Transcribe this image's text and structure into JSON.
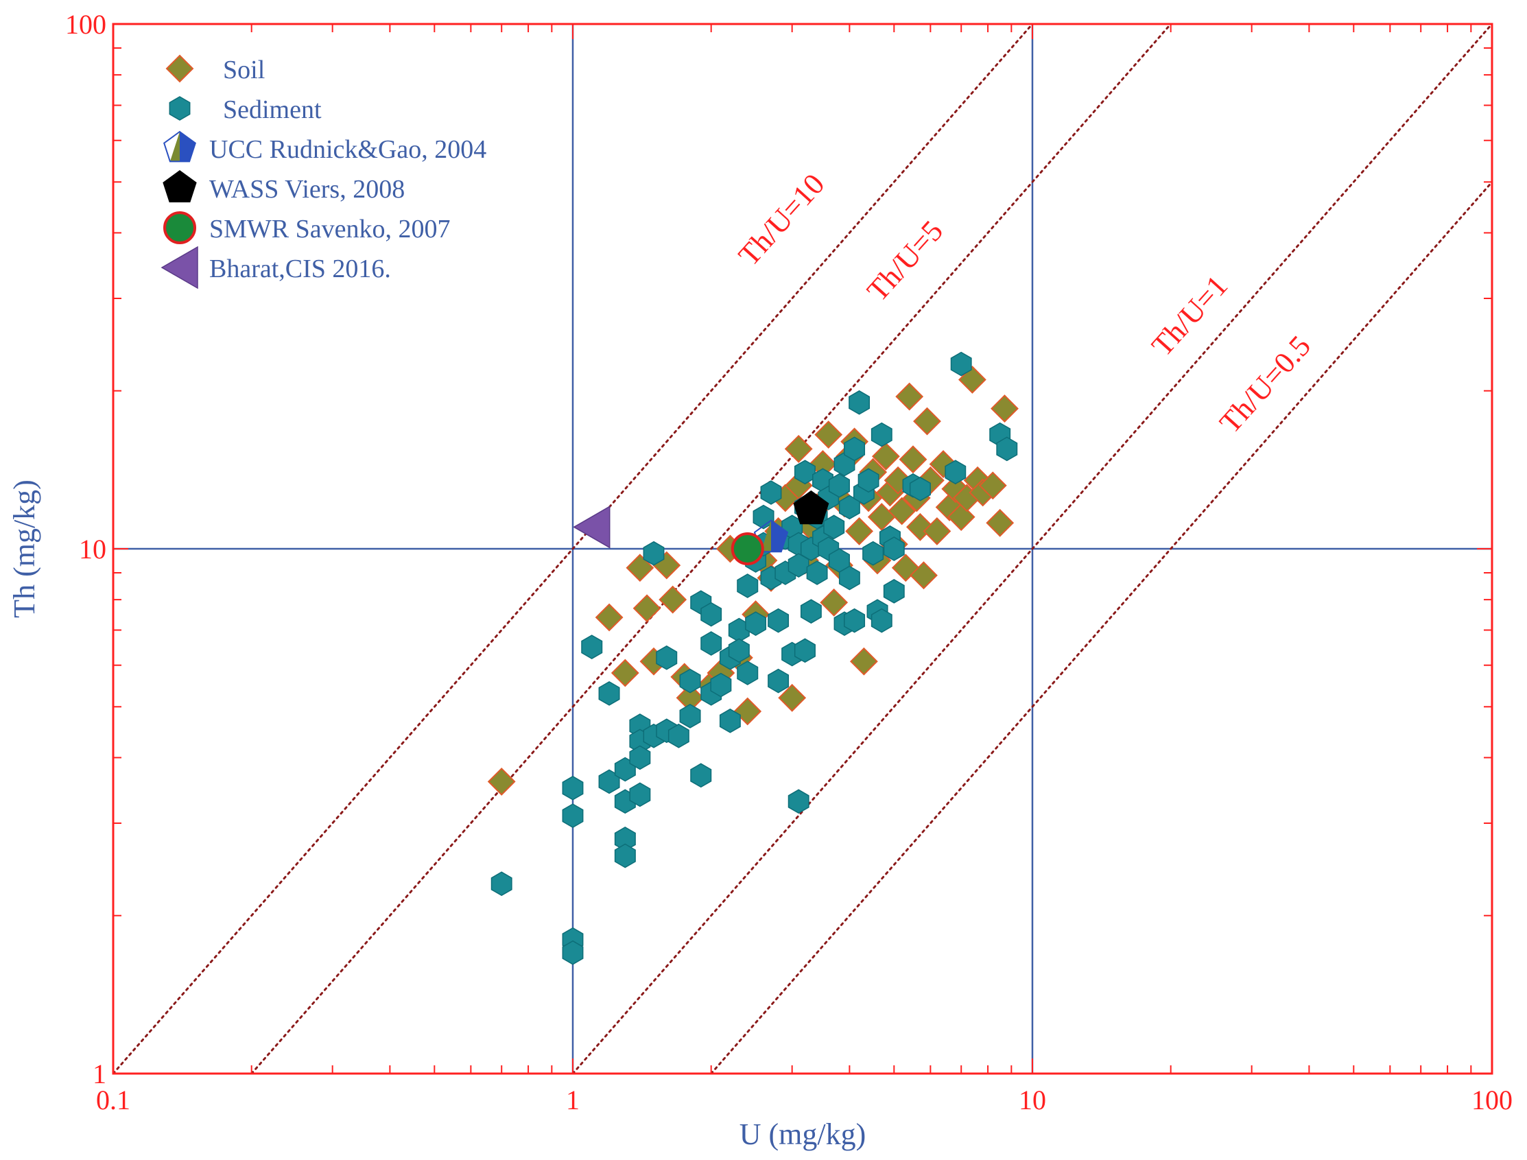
{
  "chart_data": {
    "type": "scatter",
    "title": "",
    "xlabel": "U (mg/kg)",
    "ylabel": "Th (mg/kg)",
    "x_scale": "log",
    "y_scale": "log",
    "xlim": [
      0.1,
      100
    ],
    "ylim": [
      1,
      100
    ],
    "x_tick_labels": [
      "0.1",
      "1",
      "10",
      "100"
    ],
    "y_tick_labels": [
      "1",
      "10",
      "100"
    ],
    "grid": "major lines at 1 and 10",
    "legend_position": "top-left",
    "colors": {
      "frame": "#ff2020",
      "grid": "#3f5fa6",
      "ratio_line": "#8b1a1a",
      "ratio_label": "#ff2020",
      "axis_label": "#3f5fa6",
      "soil_fill": "#8a8a30",
      "soil_edge": "#e05a2a",
      "sediment_fill": "#1a8a94",
      "sediment_edge": "#0d6e78",
      "ucc_left": "#7a8a30",
      "ucc_right": "#2a50c0",
      "wass": "#000000",
      "smwr_fill": "#1a8a3a",
      "smwr_ring": "#e02020",
      "bharat": "#7a52a8",
      "legend_text": "#3f5fa6"
    },
    "ratio_lines": [
      {
        "ratio": 10,
        "label": "Th/U=10"
      },
      {
        "ratio": 5,
        "label": "Th/U=5"
      },
      {
        "ratio": 1,
        "label": "Th/U=1"
      },
      {
        "ratio": 0.5,
        "label": "Th/U=0.5"
      }
    ],
    "legend": [
      {
        "label": "Soil",
        "icon": "diamond-icon"
      },
      {
        "label": "Sediment",
        "icon": "hexagon-icon"
      },
      {
        "label": "UCC Rudnick&Gao, 2004",
        "icon": "pentagon-icon"
      },
      {
        "label": "WASS Viers, 2008",
        "icon": "pentagon-icon"
      },
      {
        "label": "SMWR Savenko, 2007",
        "icon": "circle-icon"
      },
      {
        "label": "Bharat,CIS 2016.",
        "icon": "triangle-left-icon"
      }
    ],
    "series": [
      {
        "name": "Soil",
        "marker": "diamond",
        "points": [
          [
            0.7,
            3.6
          ],
          [
            1.2,
            7.4
          ],
          [
            1.3,
            5.8
          ],
          [
            1.4,
            9.2
          ],
          [
            1.45,
            7.7
          ],
          [
            1.5,
            6.1
          ],
          [
            1.6,
            9.3
          ],
          [
            1.65,
            8.0
          ],
          [
            1.75,
            5.7
          ],
          [
            1.8,
            5.2
          ],
          [
            2.0,
            5.5
          ],
          [
            2.1,
            5.8
          ],
          [
            2.2,
            10.0
          ],
          [
            2.3,
            6.2
          ],
          [
            2.4,
            4.9
          ],
          [
            2.5,
            7.5
          ],
          [
            2.6,
            9.5
          ],
          [
            2.7,
            8.8
          ],
          [
            2.8,
            10.8
          ],
          [
            2.9,
            12.5
          ],
          [
            3.0,
            5.2
          ],
          [
            3.1,
            13.2
          ],
          [
            3.1,
            15.5
          ],
          [
            3.2,
            9.5
          ],
          [
            3.3,
            11.0
          ],
          [
            3.4,
            12.0
          ],
          [
            3.5,
            14.5
          ],
          [
            3.6,
            16.5
          ],
          [
            3.7,
            7.9
          ],
          [
            3.8,
            9.3
          ],
          [
            3.9,
            12.2
          ],
          [
            4.0,
            15.0
          ],
          [
            4.1,
            16.0
          ],
          [
            4.2,
            10.8
          ],
          [
            4.3,
            6.1
          ],
          [
            4.4,
            12.5
          ],
          [
            4.5,
            14.0
          ],
          [
            4.6,
            9.5
          ],
          [
            4.7,
            11.5
          ],
          [
            4.8,
            15.0
          ],
          [
            4.9,
            12.8
          ],
          [
            5.0,
            10.2
          ],
          [
            5.1,
            13.5
          ],
          [
            5.2,
            11.8
          ],
          [
            5.3,
            9.2
          ],
          [
            5.4,
            19.5
          ],
          [
            5.5,
            14.8
          ],
          [
            5.6,
            12.5
          ],
          [
            5.7,
            11.0
          ],
          [
            5.8,
            8.9
          ],
          [
            5.9,
            17.5
          ],
          [
            6.0,
            13.5
          ],
          [
            6.2,
            10.8
          ],
          [
            6.4,
            14.5
          ],
          [
            6.6,
            12.0
          ],
          [
            6.8,
            13.0
          ],
          [
            7.0,
            11.5
          ],
          [
            7.2,
            12.5
          ],
          [
            7.4,
            21.0
          ],
          [
            7.6,
            13.5
          ],
          [
            7.8,
            12.8
          ],
          [
            8.2,
            13.2
          ],
          [
            8.5,
            11.2
          ],
          [
            8.7,
            18.5
          ]
        ]
      },
      {
        "name": "Sediment",
        "marker": "hexagon",
        "points": [
          [
            0.7,
            2.3
          ],
          [
            1.0,
            3.5
          ],
          [
            1.0,
            3.1
          ],
          [
            1.0,
            1.8
          ],
          [
            1.0,
            1.7
          ],
          [
            1.1,
            6.5
          ],
          [
            1.2,
            3.6
          ],
          [
            1.2,
            5.3
          ],
          [
            1.3,
            3.8
          ],
          [
            1.3,
            3.3
          ],
          [
            1.3,
            2.8
          ],
          [
            1.3,
            2.6
          ],
          [
            1.4,
            4.6
          ],
          [
            1.4,
            4.3
          ],
          [
            1.4,
            4.0
          ],
          [
            1.4,
            3.4
          ],
          [
            1.5,
            4.4
          ],
          [
            1.5,
            9.8
          ],
          [
            1.6,
            4.5
          ],
          [
            1.6,
            6.2
          ],
          [
            1.7,
            4.4
          ],
          [
            1.8,
            4.8
          ],
          [
            1.8,
            5.6
          ],
          [
            1.9,
            7.9
          ],
          [
            1.9,
            3.7
          ],
          [
            2.0,
            5.3
          ],
          [
            2.0,
            6.6
          ],
          [
            2.0,
            7.5
          ],
          [
            2.1,
            5.5
          ],
          [
            2.2,
            6.2
          ],
          [
            2.2,
            4.7
          ],
          [
            2.3,
            7.0
          ],
          [
            2.3,
            6.4
          ],
          [
            2.4,
            5.8
          ],
          [
            2.4,
            8.5
          ],
          [
            2.5,
            7.2
          ],
          [
            2.5,
            9.5
          ],
          [
            2.6,
            10.2
          ],
          [
            2.6,
            11.5
          ],
          [
            2.7,
            12.8
          ],
          [
            2.7,
            8.8
          ],
          [
            2.8,
            7.3
          ],
          [
            2.8,
            5.6
          ],
          [
            2.9,
            9.0
          ],
          [
            2.9,
            10.5
          ],
          [
            3.0,
            11.0
          ],
          [
            3.0,
            6.3
          ],
          [
            3.1,
            10.2
          ],
          [
            3.1,
            9.3
          ],
          [
            3.2,
            12.0
          ],
          [
            3.2,
            14.0
          ],
          [
            3.2,
            6.4
          ],
          [
            3.3,
            7.6
          ],
          [
            3.3,
            10.0
          ],
          [
            3.4,
            11.5
          ],
          [
            3.4,
            9.0
          ],
          [
            3.5,
            10.5
          ],
          [
            3.5,
            13.5
          ],
          [
            3.6,
            12.5
          ],
          [
            3.6,
            10.0
          ],
          [
            3.7,
            11.0
          ],
          [
            3.8,
            9.5
          ],
          [
            3.8,
            13.2
          ],
          [
            3.9,
            14.5
          ],
          [
            3.9,
            7.2
          ],
          [
            4.0,
            12.0
          ],
          [
            4.0,
            8.8
          ],
          [
            4.1,
            15.5
          ],
          [
            4.1,
            7.3
          ],
          [
            4.2,
            19.0
          ],
          [
            4.3,
            12.8
          ],
          [
            4.4,
            13.5
          ],
          [
            4.5,
            9.8
          ],
          [
            4.6,
            7.6
          ],
          [
            4.7,
            16.5
          ],
          [
            4.7,
            7.3
          ],
          [
            4.9,
            10.5
          ],
          [
            5.0,
            8.3
          ],
          [
            5.0,
            10.0
          ],
          [
            5.5,
            13.2
          ],
          [
            5.7,
            13.0
          ],
          [
            6.8,
            14.0
          ],
          [
            7.0,
            22.5
          ],
          [
            8.5,
            16.5
          ],
          [
            8.8,
            15.5
          ],
          [
            3.1,
            3.3
          ]
        ]
      },
      {
        "name": "UCC Rudnick&Gao, 2004",
        "marker": "pentagon",
        "points": [
          [
            2.7,
            10.5
          ]
        ]
      },
      {
        "name": "WASS Viers, 2008",
        "marker": "pentagon",
        "points": [
          [
            3.3,
            11.9
          ]
        ]
      },
      {
        "name": "SMWR Savenko, 2007",
        "marker": "circle",
        "points": [
          [
            2.4,
            10.0
          ]
        ]
      },
      {
        "name": "Bharat,CIS 2016.",
        "marker": "triangle-left",
        "points": [
          [
            1.1,
            11.0
          ]
        ]
      }
    ]
  }
}
